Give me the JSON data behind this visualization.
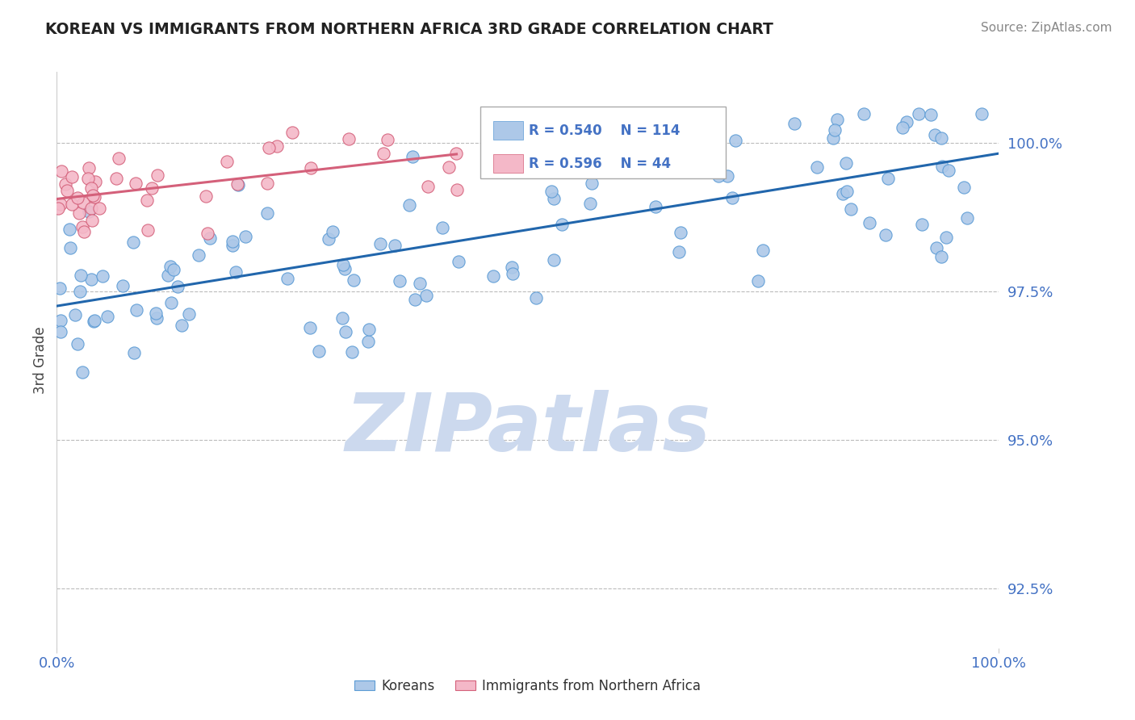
{
  "title": "KOREAN VS IMMIGRANTS FROM NORTHERN AFRICA 3RD GRADE CORRELATION CHART",
  "source_text": "Source: ZipAtlas.com",
  "ylabel": "3rd Grade",
  "watermark": "ZIPatlas",
  "xlim": [
    0.0,
    100.0
  ],
  "ylim": [
    91.5,
    101.2
  ],
  "yticks": [
    92.5,
    95.0,
    97.5,
    100.0
  ],
  "ytick_labels": [
    "92.5%",
    "95.0%",
    "97.5%",
    "100.0%"
  ],
  "blue_R": 0.54,
  "blue_N": 114,
  "pink_R": 0.596,
  "pink_N": 44,
  "legend_blue_label": "Koreans",
  "legend_pink_label": "Immigrants from Northern Africa",
  "blue_color": "#adc8e8",
  "blue_edge_color": "#5b9bd5",
  "pink_color": "#f4b8c8",
  "pink_edge_color": "#d4607a",
  "blue_line_color": "#2166ac",
  "pink_line_color": "#d4607a",
  "title_color": "#222222",
  "axis_label_color": "#4472c4",
  "grid_color": "#bbbbbb",
  "watermark_color": "#ccd9ee",
  "source_color": "#888888"
}
